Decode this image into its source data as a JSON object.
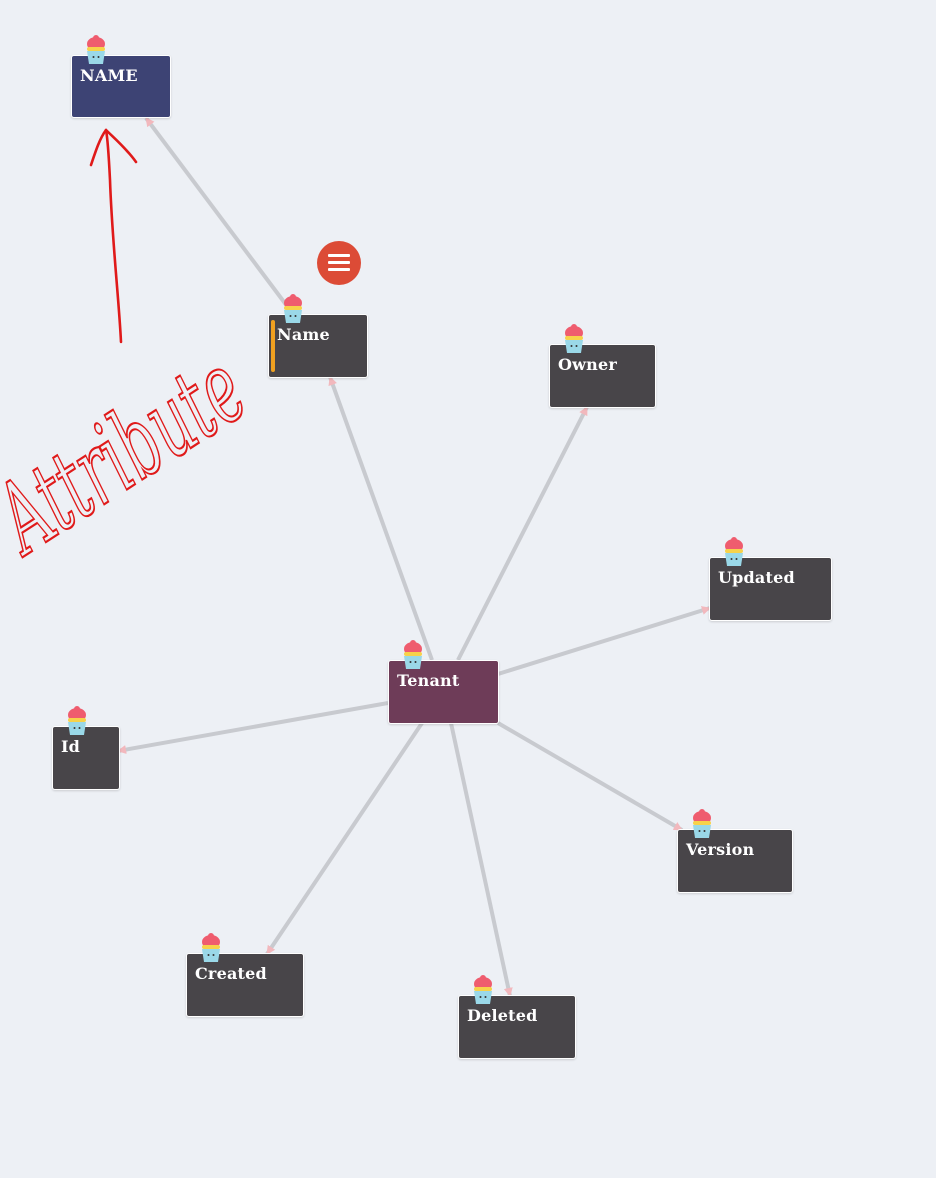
{
  "nodes": {
    "name_upper": {
      "label": "NAME",
      "color": "#3d4374"
    },
    "name": {
      "label": "Name",
      "color": "#484549",
      "selected_color": "#f0a020"
    },
    "owner": {
      "label": "Owner",
      "color": "#484549"
    },
    "updated": {
      "label": "Updated",
      "color": "#484549"
    },
    "tenant": {
      "label": "Tenant",
      "color": "#6e3c58"
    },
    "id": {
      "label": "Id",
      "color": "#484549"
    },
    "version": {
      "label": "Version",
      "color": "#484549"
    },
    "created": {
      "label": "Created",
      "color": "#484549"
    },
    "deleted": {
      "label": "Deleted",
      "color": "#484549"
    }
  },
  "edges": [
    {
      "from": "tenant",
      "to": "name"
    },
    {
      "from": "tenant",
      "to": "owner"
    },
    {
      "from": "tenant",
      "to": "updated"
    },
    {
      "from": "tenant",
      "to": "id"
    },
    {
      "from": "tenant",
      "to": "version"
    },
    {
      "from": "tenant",
      "to": "created"
    },
    {
      "from": "tenant",
      "to": "deleted"
    },
    {
      "from": "name",
      "to": "name_upper"
    }
  ],
  "node_icon": "cupcake-icon",
  "menu_button": {
    "icon": "hamburger-menu-icon",
    "color": "#dc4b36"
  },
  "annotation": {
    "text": "Attribute",
    "color": "#e01a1a"
  },
  "colors": {
    "edge": "#c8cacf",
    "arrowhead": "#f2b8bd",
    "background": "#edf0f5"
  }
}
